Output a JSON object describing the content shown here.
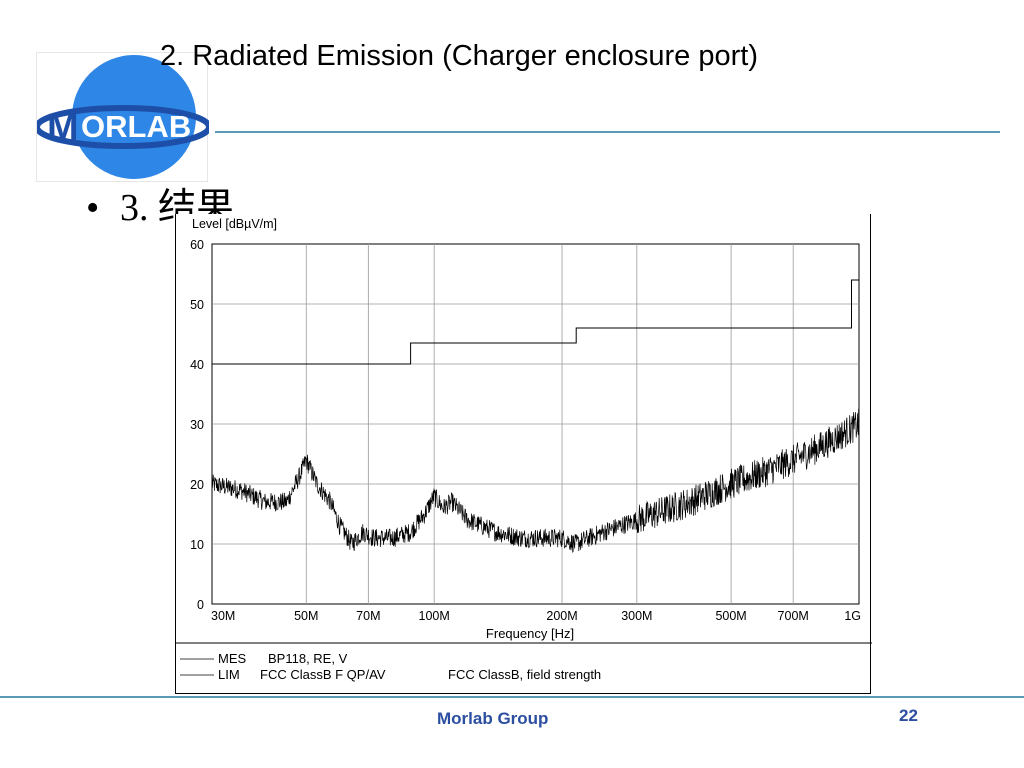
{
  "slide": {
    "title": "2. Radiated Emission (Charger enclosure port)",
    "bullet": "3. 结果",
    "footer": "Morlab Group",
    "page_number": "22"
  },
  "logo": {
    "text": "MORLAB",
    "circle_color": "#2e86e6",
    "ring_color": "#1d4fa8"
  },
  "colors": {
    "accent_rule": "#5b9ab4",
    "footer_text": "#2b4ea0",
    "grid": "#9a9a9a"
  },
  "chart_data": {
    "type": "line",
    "ylabel": "Level [dBµV/m]",
    "xlabel": "Frequency [Hz]",
    "x_scale": "log",
    "xlim_hz": [
      30000000,
      1000000000
    ],
    "ylim": [
      0,
      60
    ],
    "grid": true,
    "x_ticks": [
      {
        "value": 30000000,
        "label": "30M"
      },
      {
        "value": 50000000,
        "label": "50M"
      },
      {
        "value": 70000000,
        "label": "70M"
      },
      {
        "value": 100000000,
        "label": "100M"
      },
      {
        "value": 200000000,
        "label": "200M"
      },
      {
        "value": 300000000,
        "label": "300M"
      },
      {
        "value": 500000000,
        "label": "500M"
      },
      {
        "value": 700000000,
        "label": "700M"
      },
      {
        "value": 1000000000,
        "label": "1G"
      }
    ],
    "y_ticks": [
      0,
      10,
      20,
      30,
      40,
      50,
      60
    ],
    "legend": [
      {
        "code": "MES",
        "text": "BP118, RE, V"
      },
      {
        "code": "LIM",
        "text": "FCC ClassB F QP/AV",
        "extra": "FCC ClassB, field strength"
      }
    ],
    "series": [
      {
        "name": "LIM",
        "style": "step",
        "points": [
          {
            "x": 30000000,
            "y": 40
          },
          {
            "x": 88000000,
            "y": 40
          },
          {
            "x": 88000000,
            "y": 43.5
          },
          {
            "x": 216000000,
            "y": 43.5
          },
          {
            "x": 216000000,
            "y": 46
          },
          {
            "x": 960000000,
            "y": 46
          },
          {
            "x": 960000000,
            "y": 54
          },
          {
            "x": 1000000000,
            "y": 54
          }
        ]
      },
      {
        "name": "MES",
        "style": "noisy",
        "points": [
          {
            "x": 30000000,
            "y": 20
          },
          {
            "x": 35000000,
            "y": 19
          },
          {
            "x": 40000000,
            "y": 17
          },
          {
            "x": 45000000,
            "y": 17
          },
          {
            "x": 48000000,
            "y": 21
          },
          {
            "x": 50000000,
            "y": 24
          },
          {
            "x": 53000000,
            "y": 20
          },
          {
            "x": 57000000,
            "y": 17
          },
          {
            "x": 60000000,
            "y": 13
          },
          {
            "x": 64000000,
            "y": 10
          },
          {
            "x": 68000000,
            "y": 12
          },
          {
            "x": 72000000,
            "y": 11
          },
          {
            "x": 80000000,
            "y": 11
          },
          {
            "x": 88000000,
            "y": 12
          },
          {
            "x": 95000000,
            "y": 15
          },
          {
            "x": 100000000,
            "y": 18
          },
          {
            "x": 105000000,
            "y": 16
          },
          {
            "x": 110000000,
            "y": 17
          },
          {
            "x": 120000000,
            "y": 14
          },
          {
            "x": 140000000,
            "y": 12
          },
          {
            "x": 160000000,
            "y": 11
          },
          {
            "x": 180000000,
            "y": 11
          },
          {
            "x": 200000000,
            "y": 11
          },
          {
            "x": 215000000,
            "y": 10
          },
          {
            "x": 250000000,
            "y": 12
          },
          {
            "x": 300000000,
            "y": 14
          },
          {
            "x": 400000000,
            "y": 17
          },
          {
            "x": 500000000,
            "y": 20
          },
          {
            "x": 600000000,
            "y": 22
          },
          {
            "x": 700000000,
            "y": 24
          },
          {
            "x": 800000000,
            "y": 26
          },
          {
            "x": 900000000,
            "y": 28
          },
          {
            "x": 1000000000,
            "y": 30
          }
        ]
      }
    ]
  }
}
